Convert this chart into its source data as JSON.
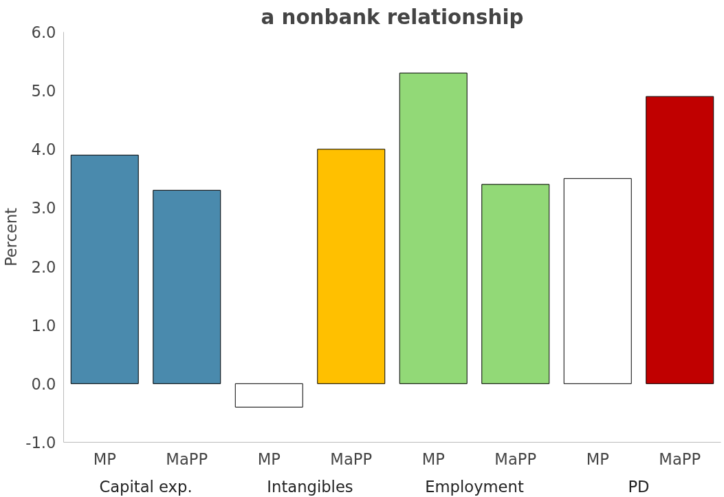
{
  "chart_data": {
    "type": "bar",
    "title": "a nonbank relationship",
    "ylabel": "Percent",
    "categories": [
      "MP",
      "MaPP",
      "MP",
      "MaPP",
      "MP",
      "MaPP",
      "MP",
      "MaPP"
    ],
    "annotations": [
      "Capital exp.",
      "Intangibles",
      "Employment",
      "PD"
    ],
    "values": [
      3.9,
      3.3,
      -0.4,
      4.0,
      5.3,
      3.4,
      3.5,
      4.9
    ],
    "colors": [
      "#4a8aad",
      "#4a8aad",
      "#ffffff",
      "#ffc000",
      "#92d977",
      "#92d977",
      "#ffffff",
      "#c00000"
    ],
    "ylim": [
      -1,
      6
    ],
    "yticks": [
      {
        "value": -1,
        "label": "-1.0"
      },
      {
        "value": 0,
        "label": "0.0"
      },
      {
        "value": 1,
        "label": "1.0"
      },
      {
        "value": 2,
        "label": "2.0"
      },
      {
        "value": 3,
        "label": "3.0"
      },
      {
        "value": 4,
        "label": "4.0"
      },
      {
        "value": 5,
        "label": "5.0"
      },
      {
        "value": 6,
        "label": "6.0"
      }
    ]
  }
}
